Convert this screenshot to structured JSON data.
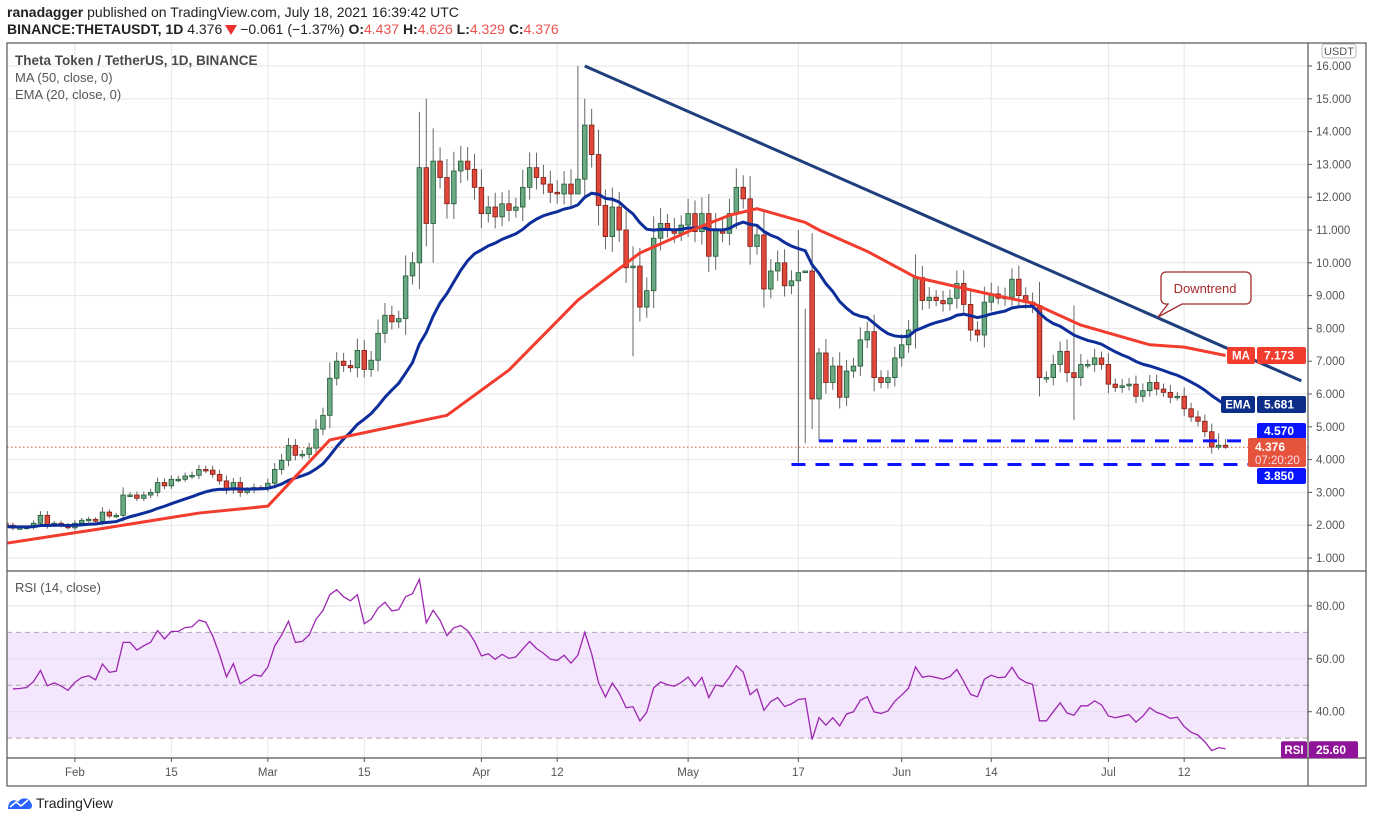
{
  "header": {
    "author": "ranadagger",
    "published_text": "published on TradingView.com, July 18, 2021 16:39:42 UTC",
    "symbol": "BINANCE:THETAUSDT, 1D",
    "last": "4.376",
    "change": "−0.061 (−1.37%)",
    "o_label": "O:",
    "o": "4.437",
    "h_label": "H:",
    "h": "4.626",
    "l_label": "L:",
    "l": "4.329",
    "c_label": "C:",
    "c": "4.376"
  },
  "legend": {
    "title": "Theta Token / TetherUS, 1D, BINANCE",
    "ma": "MA (50, close, 0)",
    "ema": "EMA (20, close, 0)",
    "rsi": "RSI (14, close)"
  },
  "footer": {
    "brand": "TradingView"
  },
  "colors": {
    "up": "#6aa984",
    "up_border": "#1f5a33",
    "down": "#e0483a",
    "down_border": "#7a1d16",
    "ma": "#f23c2e",
    "ema": "#0d2e9a",
    "trendline": "#1f3f7c",
    "support": "#0a14ff",
    "rsi": "#9c27b0",
    "rsi_band": "#f3e6fd",
    "last_price": "#e5533d"
  },
  "chart_data": {
    "type": "candlestick",
    "start_date": "2021-01-22",
    "currency": "USDT",
    "price_ticks": [
      "1.000",
      "2.000",
      "3.000",
      "4.000",
      "5.000",
      "6.000",
      "7.000",
      "8.000",
      "9.000",
      "10.000",
      "11.000",
      "12.000",
      "13.000",
      "14.000",
      "15.000",
      "16.000"
    ],
    "ylim": [
      0.5,
      16.5
    ],
    "time_labels": [
      {
        "label": "Feb",
        "day": 10
      },
      {
        "label": "15",
        "day": 24
      },
      {
        "label": "Mar",
        "day": 38
      },
      {
        "label": "15",
        "day": 52
      },
      {
        "label": "Apr",
        "day": 69
      },
      {
        "label": "12",
        "day": 80
      },
      {
        "label": "May",
        "day": 99
      },
      {
        "label": "17",
        "day": 115
      },
      {
        "label": "Jun",
        "day": 130
      },
      {
        "label": "14",
        "day": 143
      },
      {
        "label": "Jul",
        "day": 160
      },
      {
        "label": "12",
        "day": 171
      }
    ],
    "first_open": 2.05,
    "closes": [
      2.0,
      1.91,
      1.92,
      1.94,
      2.06,
      2.3,
      2.0,
      2.06,
      2.0,
      1.92,
      2.06,
      2.15,
      2.18,
      2.12,
      2.4,
      2.28,
      2.3,
      2.92,
      2.92,
      2.82,
      2.92,
      3.0,
      3.3,
      3.2,
      3.4,
      3.4,
      3.5,
      3.52,
      3.7,
      3.68,
      3.55,
      3.35,
      3.07,
      3.3,
      3.0,
      3.07,
      3.15,
      3.13,
      3.28,
      3.7,
      3.98,
      4.43,
      4.13,
      4.16,
      4.35,
      4.93,
      5.35,
      6.48,
      7.0,
      6.87,
      6.8,
      7.33,
      6.75,
      7.03,
      7.85,
      8.4,
      8.2,
      8.3,
      9.6,
      10.0,
      12.9,
      11.2,
      13.1,
      12.6,
      11.8,
      12.8,
      13.1,
      12.85,
      12.3,
      11.5,
      11.7,
      11.4,
      11.8,
      11.6,
      11.7,
      12.3,
      12.9,
      12.6,
      12.4,
      12.15,
      12.1,
      12.4,
      12.1,
      12.55,
      14.2,
      13.3,
      11.75,
      10.8,
      11.7,
      11.0,
      9.85,
      9.9,
      8.65,
      9.15,
      10.75,
      11.2,
      11.0,
      10.9,
      11.15,
      11.5,
      10.95,
      11.5,
      10.2,
      11.0,
      10.9,
      11.5,
      12.3,
      11.95,
      10.5,
      10.85,
      9.2,
      9.75,
      10.0,
      9.3,
      9.45,
      9.7,
      9.75,
      5.85,
      7.25,
      6.35,
      6.85,
      5.9,
      6.7,
      6.85,
      7.65,
      7.9,
      6.5,
      6.35,
      6.5,
      7.1,
      7.5,
      7.95,
      9.55,
      8.85,
      8.95,
      8.85,
      8.75,
      8.92,
      9.37,
      8.73,
      7.95,
      7.8,
      8.8,
      9.05,
      8.92,
      8.95,
      9.5,
      9.0,
      8.8,
      8.7,
      6.5,
      6.5,
      6.9,
      7.3,
      6.65,
      6.5,
      6.9,
      6.9,
      7.1,
      6.9,
      6.3,
      6.2,
      6.25,
      6.3,
      5.93,
      6.1,
      6.35,
      6.15,
      6.05,
      5.9,
      5.93,
      5.55,
      5.3,
      5.17,
      4.85,
      4.38,
      4.437,
      4.376
    ],
    "wick_overrides": {
      "60": [
        14.6,
        9.2
      ],
      "61": [
        15.0,
        10.5
      ],
      "62": [
        14.1,
        10.0
      ],
      "83": [
        16.0,
        12.5
      ],
      "84": [
        15.0,
        12.0
      ],
      "91": [
        10.5,
        7.15
      ],
      "115": [
        11.0,
        3.9
      ],
      "116": [
        8.6,
        4.5
      ],
      "118": [
        7.4,
        4.55
      ],
      "155": [
        8.7,
        5.2
      ],
      "176": [
        4.8,
        4.3
      ],
      "177": [
        4.626,
        4.329
      ]
    },
    "ma50_points": [
      [
        0,
        1.45
      ],
      [
        14,
        1.9
      ],
      [
        28,
        2.37
      ],
      [
        38,
        2.58
      ],
      [
        47,
        4.6
      ],
      [
        64,
        5.35
      ],
      [
        73,
        6.73
      ],
      [
        83,
        8.86
      ],
      [
        92,
        10.3
      ],
      [
        99,
        10.95
      ],
      [
        105,
        11.45
      ],
      [
        109,
        11.65
      ],
      [
        116,
        11.23
      ],
      [
        118,
        11.0
      ],
      [
        125,
        10.35
      ],
      [
        132,
        9.56
      ],
      [
        142,
        9.08
      ],
      [
        149,
        8.77
      ],
      [
        156,
        8.1
      ],
      [
        166,
        7.5
      ],
      [
        171,
        7.43
      ],
      [
        177,
        7.173
      ]
    ],
    "ema20_seed": 1.95,
    "rsi_period": 14,
    "rsi_levels": [
      30,
      50,
      70
    ],
    "rsi_ticks": [
      "40.00",
      "60.00",
      "80.00"
    ],
    "trendline": [
      [
        84,
        16.0
      ],
      [
        188,
        6.4
      ]
    ],
    "support_levels": [
      {
        "price": 4.57,
        "from_day": 118,
        "to_day": 188
      },
      {
        "price": 3.85,
        "from_day": 114,
        "to_day": 188
      }
    ],
    "annotation": "Downtrend",
    "badges": {
      "ma_tag": "MA",
      "ma_value": "7.173",
      "ema_tag": "EMA",
      "ema_value": "5.681",
      "resistance": "4.570",
      "last": "4.376",
      "countdown": "07:20:20",
      "support": "3.850",
      "rsi_tag": "RSI",
      "rsi_value": "25.60"
    }
  }
}
